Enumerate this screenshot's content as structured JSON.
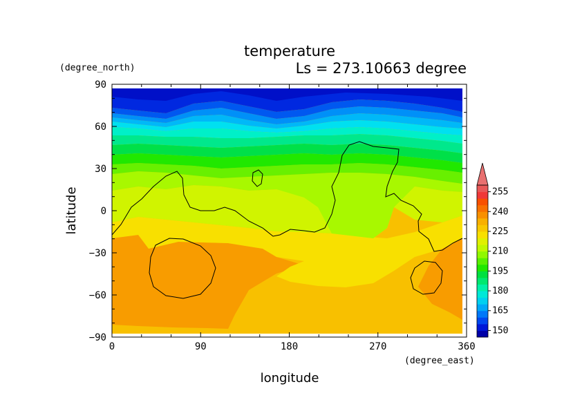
{
  "chart_data": {
    "type": "heatmap",
    "title": "temperature",
    "subtitle": "Ls = 273.10663 degree",
    "xlabel": "longitude",
    "ylabel": "latitude",
    "x_unit": "(degree_east)",
    "y_unit": "(degree_north)",
    "xlim": [
      0,
      360
    ],
    "ylim": [
      -90,
      90
    ],
    "x_ticks": [
      "0",
      "90",
      "180",
      "270",
      "360"
    ],
    "y_ticks": [
      "90",
      "60",
      "30",
      "0",
      "−30",
      "−60",
      "−90"
    ],
    "colorbar": {
      "levels": [
        145,
        150,
        155,
        160,
        165,
        170,
        175,
        180,
        185,
        190,
        195,
        200,
        205,
        210,
        215,
        220,
        225,
        230,
        235,
        240,
        245,
        250,
        255,
        260
      ],
      "colors": [
        "#0000a8",
        "#0018d8",
        "#0048f0",
        "#0078f8",
        "#00a8f8",
        "#00d0f0",
        "#00e8d8",
        "#00f0a8",
        "#00e870",
        "#00e040",
        "#20e800",
        "#58f000",
        "#90f800",
        "#c0f800",
        "#e0f000",
        "#f8e000",
        "#f8c800",
        "#f8b000",
        "#f89000",
        "#f87000",
        "#f85000",
        "#f03838",
        "#e85858"
      ],
      "tick_labels": [
        "150",
        "165",
        "180",
        "195",
        "210",
        "225",
        "240",
        "255"
      ],
      "overflow_color": "#e87070"
    },
    "zonal_profile_note": "",
    "band_levels_by_latitude": [
      {
        "lat": 85,
        "value": 147
      },
      {
        "lat": 72,
        "value": 152
      },
      {
        "lat": 66,
        "value": 162
      },
      {
        "lat": 58,
        "value": 172
      },
      {
        "lat": 50,
        "value": 183
      },
      {
        "lat": 40,
        "value": 193
      },
      {
        "lat": 30,
        "value": 203
      },
      {
        "lat": 15,
        "value": 212
      },
      {
        "lat": 0,
        "value": 218
      },
      {
        "lat": -15,
        "value": 226
      },
      {
        "lat": -30,
        "value": 231
      },
      {
        "lat": -60,
        "value": 234
      },
      {
        "lat": -85,
        "value": 234
      }
    ]
  }
}
